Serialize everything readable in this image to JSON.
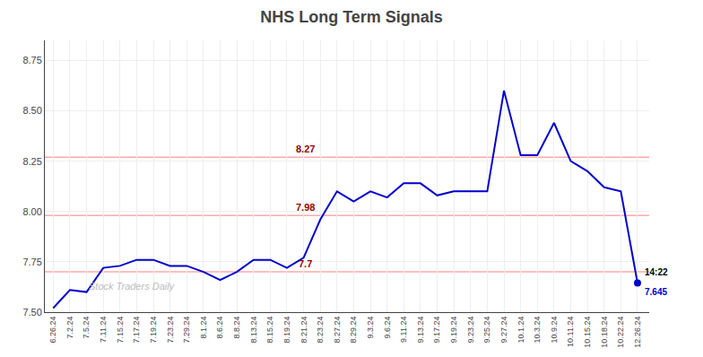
{
  "chart_data": {
    "type": "line",
    "title": "NHS Long Term Signals",
    "categories": [
      "6.26.24",
      "7.2.24",
      "7.5.24",
      "7.11.24",
      "7.15.24",
      "7.17.24",
      "7.19.24",
      "7.23.24",
      "7.29.24",
      "8.1.24",
      "8.6.24",
      "8.8.24",
      "8.13.24",
      "8.15.24",
      "8.19.24",
      "8.21.24",
      "8.23.24",
      "8.27.24",
      "8.29.24",
      "9.3.24",
      "9.6.24",
      "9.11.24",
      "9.13.24",
      "9.17.24",
      "9.19.24",
      "9.23.24",
      "9.25.24",
      "9.27.24",
      "10.1.24",
      "10.3.24",
      "10.9.24",
      "10.11.24",
      "10.15.24",
      "10.18.24",
      "10.22.24",
      "12.26.24"
    ],
    "values": [
      7.52,
      7.61,
      7.6,
      7.72,
      7.73,
      7.76,
      7.76,
      7.73,
      7.73,
      7.7,
      7.66,
      7.7,
      7.76,
      7.76,
      7.72,
      7.77,
      7.96,
      8.1,
      8.05,
      8.1,
      8.07,
      8.14,
      8.14,
      8.08,
      8.1,
      8.1,
      8.1,
      8.6,
      8.28,
      8.28,
      8.44,
      8.25,
      8.2,
      8.12,
      8.1,
      7.645
    ],
    "color": "#0000cc",
    "ylim": [
      7.5,
      8.85
    ],
    "yticks": [
      {
        "value": 7.5,
        "label": "7.50"
      },
      7.75,
      {
        "value": 8.0,
        "label": "8.00"
      },
      8.25,
      {
        "value": 8.5,
        "label": "8.50"
      },
      8.75
    ],
    "grid": true,
    "reference_lines": [
      {
        "value": 8.27,
        "label": "8.27",
        "color": "#ffaaaa",
        "label_color": "#990000"
      },
      {
        "value": 7.98,
        "label": "7.98",
        "color": "#ffaaaa",
        "label_color": "#990000"
      },
      {
        "value": 7.7,
        "label": "7.7",
        "color": "#ffaaaa",
        "label_color": "#990000"
      }
    ],
    "end_point": {
      "value": 7.645,
      "time_label": "14:22",
      "color": "#0000cc"
    },
    "annotations": [
      {
        "text": "Stock Traders Daily",
        "color": "#bbbbbb"
      }
    ]
  }
}
